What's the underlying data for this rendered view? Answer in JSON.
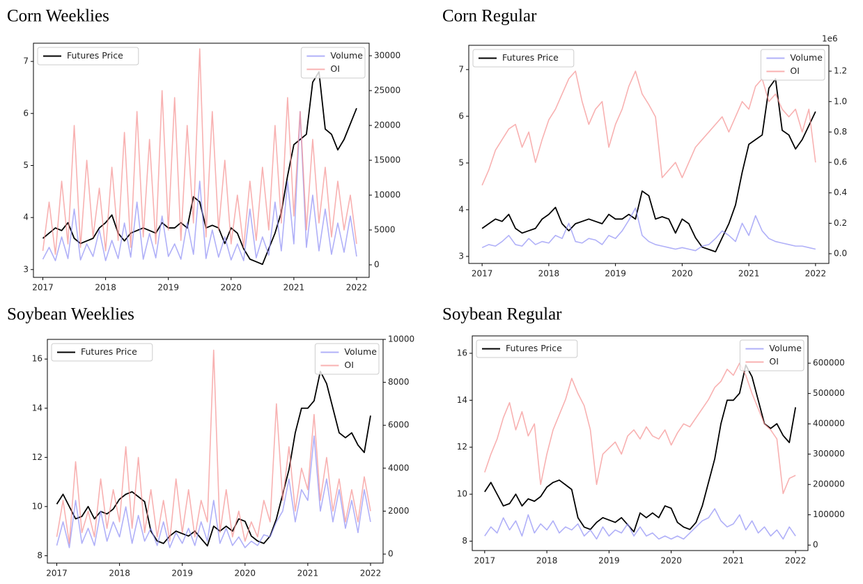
{
  "chart_data": [
    {
      "type": "line",
      "title": "Corn Weeklies",
      "x": [
        2017,
        2017.1,
        2017.2,
        2017.3,
        2017.4,
        2017.5,
        2017.6,
        2017.7,
        2017.8,
        2017.9,
        2018,
        2018.1,
        2018.2,
        2018.3,
        2018.4,
        2018.5,
        2018.6,
        2018.7,
        2018.8,
        2018.9,
        2019,
        2019.1,
        2019.2,
        2019.3,
        2019.4,
        2019.5,
        2019.6,
        2019.7,
        2019.8,
        2019.9,
        2020,
        2020.1,
        2020.2,
        2020.3,
        2020.4,
        2020.5,
        2020.6,
        2020.7,
        2020.8,
        2020.9,
        2021,
        2021.1,
        2021.2,
        2021.3,
        2021.4,
        2021.5,
        2021.6,
        2021.7,
        2021.8,
        2021.9,
        2022
      ],
      "xlim": [
        2016.85,
        2022.2
      ],
      "xticks": [
        2017,
        2018,
        2019,
        2020,
        2021,
        2022
      ],
      "ylim": [
        2.85,
        7.35
      ],
      "yticks": [
        3,
        4,
        5,
        6,
        7
      ],
      "y2lim": [
        -1800,
        31800
      ],
      "y2ticks": [
        0,
        5000,
        10000,
        15000,
        20000,
        25000,
        30000
      ],
      "legend": "upper left",
      "legend2": "upper right",
      "series": [
        {
          "name": "Futures Price",
          "color": "#000000",
          "axis": "y",
          "values": [
            3.6,
            3.7,
            3.8,
            3.75,
            3.9,
            3.6,
            3.5,
            3.55,
            3.6,
            3.8,
            3.9,
            4.05,
            3.7,
            3.55,
            3.7,
            3.75,
            3.8,
            3.75,
            3.7,
            3.9,
            3.8,
            3.8,
            3.9,
            3.8,
            4.4,
            4.3,
            3.8,
            3.85,
            3.8,
            3.5,
            3.8,
            3.7,
            3.4,
            3.2,
            3.15,
            3.1,
            3.4,
            3.7,
            4.1,
            4.8,
            5.4,
            5.5,
            5.6,
            6.6,
            6.8,
            5.7,
            5.6,
            5.3,
            5.5,
            5.8,
            6.1
          ]
        },
        {
          "name": "Volume",
          "color": "#8f8ff5",
          "axis": "y2",
          "values": [
            800,
            2500,
            600,
            4000,
            900,
            8000,
            700,
            3000,
            1200,
            5000,
            600,
            3500,
            900,
            6000,
            1100,
            9000,
            800,
            4500,
            1000,
            7000,
            1200,
            3000,
            800,
            6000,
            1500,
            12000,
            900,
            5000,
            1100,
            4000,
            700,
            3000,
            600,
            8000,
            1000,
            4000,
            1400,
            9000,
            2000,
            12000,
            3000,
            22000,
            2500,
            10000,
            2000,
            8000,
            1500,
            6000,
            1800,
            7000,
            1200
          ]
        },
        {
          "name": "OI",
          "color": "#f59090",
          "axis": "y2",
          "values": [
            2000,
            9000,
            1500,
            12000,
            3000,
            20000,
            2500,
            15000,
            4000,
            11000,
            2000,
            14000,
            3500,
            19000,
            2500,
            22000,
            4000,
            18000,
            3000,
            25000,
            5000,
            24000,
            3500,
            20000,
            6000,
            31000,
            4000,
            22000,
            5000,
            15000,
            3000,
            10000,
            2500,
            12000,
            3500,
            14000,
            5000,
            20000,
            6000,
            24000,
            7000,
            22000,
            5000,
            18000,
            6000,
            14000,
            4000,
            12000,
            5000,
            10000,
            3000
          ]
        }
      ]
    },
    {
      "type": "line",
      "title": "Corn Regular",
      "x": [
        2017,
        2017.1,
        2017.2,
        2017.3,
        2017.4,
        2017.5,
        2017.6,
        2017.7,
        2017.8,
        2017.9,
        2018,
        2018.1,
        2018.2,
        2018.3,
        2018.4,
        2018.5,
        2018.6,
        2018.7,
        2018.8,
        2018.9,
        2019,
        2019.1,
        2019.2,
        2019.3,
        2019.4,
        2019.5,
        2019.6,
        2019.7,
        2019.8,
        2019.9,
        2020,
        2020.1,
        2020.2,
        2020.3,
        2020.4,
        2020.5,
        2020.6,
        2020.7,
        2020.8,
        2020.9,
        2021,
        2021.1,
        2021.2,
        2021.3,
        2021.4,
        2021.5,
        2021.6,
        2021.7,
        2021.8,
        2021.9,
        2022
      ],
      "xlim": [
        2016.8,
        2022.2
      ],
      "xticks": [
        2017,
        2018,
        2019,
        2020,
        2021,
        2022
      ],
      "ylim": [
        2.85,
        7.52
      ],
      "yticks": [
        3,
        4,
        5,
        6,
        7
      ],
      "y2lim": [
        -0.064,
        1.37
      ],
      "y2ticks": [
        {
          "value": 0,
          "label": "0.0"
        },
        0.2,
        0.4,
        0.6,
        0.8,
        {
          "value": 1,
          "label": "1.0"
        },
        1.2
      ],
      "y2_offset_label": "1e6",
      "legend": "upper left",
      "legend2": "upper right",
      "series": [
        {
          "name": "Futures Price",
          "color": "#000000",
          "axis": "y",
          "values": [
            3.6,
            3.7,
            3.8,
            3.75,
            3.9,
            3.6,
            3.5,
            3.55,
            3.6,
            3.8,
            3.9,
            4.05,
            3.7,
            3.55,
            3.7,
            3.75,
            3.8,
            3.75,
            3.7,
            3.9,
            3.8,
            3.8,
            3.9,
            3.8,
            4.4,
            4.3,
            3.8,
            3.85,
            3.8,
            3.5,
            3.8,
            3.7,
            3.4,
            3.2,
            3.15,
            3.1,
            3.4,
            3.7,
            4.1,
            4.8,
            5.4,
            5.5,
            5.6,
            6.6,
            6.8,
            5.7,
            5.6,
            5.3,
            5.5,
            5.8,
            6.1
          ]
        },
        {
          "name": "Volume",
          "color": "#8f8ff5",
          "axis": "y2",
          "values": [
            0.04,
            0.06,
            0.05,
            0.08,
            0.12,
            0.06,
            0.05,
            0.1,
            0.06,
            0.08,
            0.07,
            0.12,
            0.1,
            0.2,
            0.08,
            0.07,
            0.1,
            0.09,
            0.06,
            0.12,
            0.1,
            0.15,
            0.22,
            0.3,
            0.12,
            0.08,
            0.06,
            0.05,
            0.04,
            0.03,
            0.04,
            0.03,
            0.02,
            0.05,
            0.06,
            0.1,
            0.15,
            0.12,
            0.08,
            0.2,
            0.12,
            0.25,
            0.15,
            0.1,
            0.08,
            0.07,
            0.06,
            0.05,
            0.05,
            0.04,
            0.03
          ]
        },
        {
          "name": "OI",
          "color": "#f59090",
          "axis": "y2",
          "values": [
            0.45,
            0.55,
            0.68,
            0.75,
            0.82,
            0.85,
            0.7,
            0.8,
            0.6,
            0.75,
            0.88,
            0.95,
            1.05,
            1.15,
            1.2,
            1.0,
            0.85,
            0.95,
            1.0,
            0.7,
            0.85,
            0.95,
            1.1,
            1.2,
            1.05,
            0.98,
            0.9,
            0.5,
            0.55,
            0.6,
            0.5,
            0.6,
            0.7,
            0.75,
            0.8,
            0.85,
            0.9,
            0.8,
            0.9,
            1.0,
            0.95,
            1.1,
            1.15,
            1.0,
            1.05,
            0.95,
            0.9,
            0.95,
            0.8,
            0.95,
            0.6
          ]
        }
      ]
    },
    {
      "type": "line",
      "title": "Soybean Weeklies",
      "x": [
        2017,
        2017.1,
        2017.2,
        2017.3,
        2017.4,
        2017.5,
        2017.6,
        2017.7,
        2017.8,
        2017.9,
        2018,
        2018.1,
        2018.2,
        2018.3,
        2018.4,
        2018.5,
        2018.6,
        2018.7,
        2018.8,
        2018.9,
        2019,
        2019.1,
        2019.2,
        2019.3,
        2019.4,
        2019.5,
        2019.6,
        2019.7,
        2019.8,
        2019.9,
        2020,
        2020.1,
        2020.2,
        2020.3,
        2020.4,
        2020.5,
        2020.6,
        2020.7,
        2020.8,
        2020.9,
        2021,
        2021.1,
        2021.2,
        2021.3,
        2021.4,
        2021.5,
        2021.6,
        2021.7,
        2021.8,
        2021.9,
        2022
      ],
      "xlim": [
        2016.85,
        2022.2
      ],
      "xticks": [
        2017,
        2018,
        2019,
        2020,
        2021,
        2022
      ],
      "ylim": [
        7.7,
        16.8
      ],
      "yticks": [
        8,
        10,
        12,
        14,
        16
      ],
      "y2lim": [
        -420,
        10000
      ],
      "y2ticks": [
        0,
        2000,
        4000,
        6000,
        8000,
        10000
      ],
      "legend": "upper left",
      "legend2": "upper right",
      "series": [
        {
          "name": "Futures Price",
          "color": "#000000",
          "axis": "y",
          "values": [
            10.1,
            10.5,
            10.0,
            9.5,
            9.6,
            10.0,
            9.5,
            9.8,
            9.7,
            9.9,
            10.3,
            10.5,
            10.6,
            10.4,
            10.2,
            9.0,
            8.6,
            8.5,
            8.8,
            9.0,
            8.9,
            8.8,
            9.0,
            8.7,
            8.4,
            9.2,
            9.0,
            9.2,
            9.0,
            9.5,
            9.4,
            8.8,
            8.6,
            8.5,
            8.8,
            9.5,
            10.5,
            11.5,
            13.0,
            14.0,
            14.0,
            14.3,
            15.5,
            15.0,
            14.0,
            13.0,
            12.8,
            13.0,
            12.5,
            12.2,
            13.7
          ]
        },
        {
          "name": "Volume",
          "color": "#8f8ff5",
          "axis": "y2",
          "values": [
            400,
            1500,
            300,
            2500,
            500,
            1200,
            400,
            2000,
            600,
            1500,
            800,
            2200,
            500,
            1800,
            600,
            1200,
            400,
            1500,
            300,
            1000,
            500,
            1200,
            400,
            1500,
            600,
            2500,
            500,
            1200,
            400,
            800,
            300,
            600,
            400,
            900,
            800,
            1500,
            2000,
            3500,
            1500,
            3000,
            2500,
            5500,
            2000,
            3500,
            1500,
            3000,
            1200,
            2500,
            1000,
            3000,
            1500
          ]
        },
        {
          "name": "OI",
          "color": "#f59090",
          "axis": "y2",
          "values": [
            800,
            2500,
            500,
            4300,
            1000,
            2000,
            800,
            3500,
            1200,
            3000,
            1500,
            5000,
            1200,
            4500,
            1000,
            3000,
            800,
            2500,
            600,
            3500,
            1000,
            3000,
            800,
            2500,
            1500,
            9500,
            1000,
            3000,
            800,
            2000,
            600,
            1500,
            800,
            2500,
            1500,
            7000,
            2500,
            5000,
            2000,
            4000,
            3000,
            6500,
            2500,
            4500,
            2000,
            3500,
            1500,
            3000,
            1500,
            3600,
            2000
          ]
        }
      ]
    },
    {
      "type": "line",
      "title": "Soybean Regular",
      "x": [
        2017,
        2017.1,
        2017.2,
        2017.3,
        2017.4,
        2017.5,
        2017.6,
        2017.7,
        2017.8,
        2017.9,
        2018,
        2018.1,
        2018.2,
        2018.3,
        2018.4,
        2018.5,
        2018.6,
        2018.7,
        2018.8,
        2018.9,
        2019,
        2019.1,
        2019.2,
        2019.3,
        2019.4,
        2019.5,
        2019.6,
        2019.7,
        2019.8,
        2019.9,
        2020,
        2020.1,
        2020.2,
        2020.3,
        2020.4,
        2020.5,
        2020.6,
        2020.7,
        2020.8,
        2020.9,
        2021,
        2021.1,
        2021.2,
        2021.3,
        2021.4,
        2021.5,
        2021.6,
        2021.7,
        2021.8,
        2021.9,
        2022
      ],
      "xlim": [
        2016.8,
        2022.2
      ],
      "xticks": [
        2017,
        2018,
        2019,
        2020,
        2021,
        2022
      ],
      "ylim": [
        7.6,
        16.74
      ],
      "yticks": [
        8,
        10,
        12,
        14,
        16
      ],
      "y2lim": [
        -18000,
        690000
      ],
      "y2ticks": [
        0,
        100000,
        200000,
        300000,
        400000,
        500000,
        600000
      ],
      "legend": "upper left",
      "legend2": "upper right",
      "series": [
        {
          "name": "Futures Price",
          "color": "#000000",
          "axis": "y",
          "values": [
            10.1,
            10.5,
            10.0,
            9.5,
            9.6,
            10.0,
            9.5,
            9.8,
            9.7,
            9.9,
            10.3,
            10.5,
            10.6,
            10.4,
            10.2,
            9.0,
            8.6,
            8.5,
            8.8,
            9.0,
            8.9,
            8.8,
            9.0,
            8.7,
            8.4,
            9.2,
            9.0,
            9.2,
            9.0,
            9.5,
            9.4,
            8.8,
            8.6,
            8.5,
            8.8,
            9.5,
            10.5,
            11.5,
            13.0,
            14.0,
            14.0,
            14.3,
            15.5,
            15.0,
            14.0,
            13.0,
            12.8,
            13.0,
            12.5,
            12.2,
            13.7
          ]
        },
        {
          "name": "Volume",
          "color": "#8f8ff5",
          "axis": "y2",
          "values": [
            30000,
            60000,
            40000,
            90000,
            50000,
            80000,
            30000,
            100000,
            40000,
            70000,
            50000,
            80000,
            40000,
            60000,
            50000,
            70000,
            30000,
            50000,
            20000,
            60000,
            30000,
            50000,
            40000,
            70000,
            30000,
            60000,
            30000,
            40000,
            20000,
            30000,
            20000,
            30000,
            20000,
            40000,
            60000,
            80000,
            90000,
            120000,
            80000,
            60000,
            70000,
            100000,
            50000,
            80000,
            40000,
            60000,
            30000,
            50000,
            20000,
            60000,
            30000
          ]
        },
        {
          "name": "OI",
          "color": "#f59090",
          "axis": "y2",
          "values": [
            240000,
            300000,
            350000,
            420000,
            470000,
            380000,
            440000,
            360000,
            400000,
            200000,
            300000,
            380000,
            430000,
            480000,
            550000,
            500000,
            460000,
            380000,
            200000,
            300000,
            320000,
            340000,
            300000,
            360000,
            380000,
            350000,
            390000,
            360000,
            350000,
            380000,
            330000,
            370000,
            400000,
            390000,
            420000,
            450000,
            480000,
            520000,
            540000,
            580000,
            560000,
            600000,
            560000,
            500000,
            450000,
            400000,
            380000,
            350000,
            170000,
            220000,
            230000
          ]
        }
      ]
    }
  ]
}
